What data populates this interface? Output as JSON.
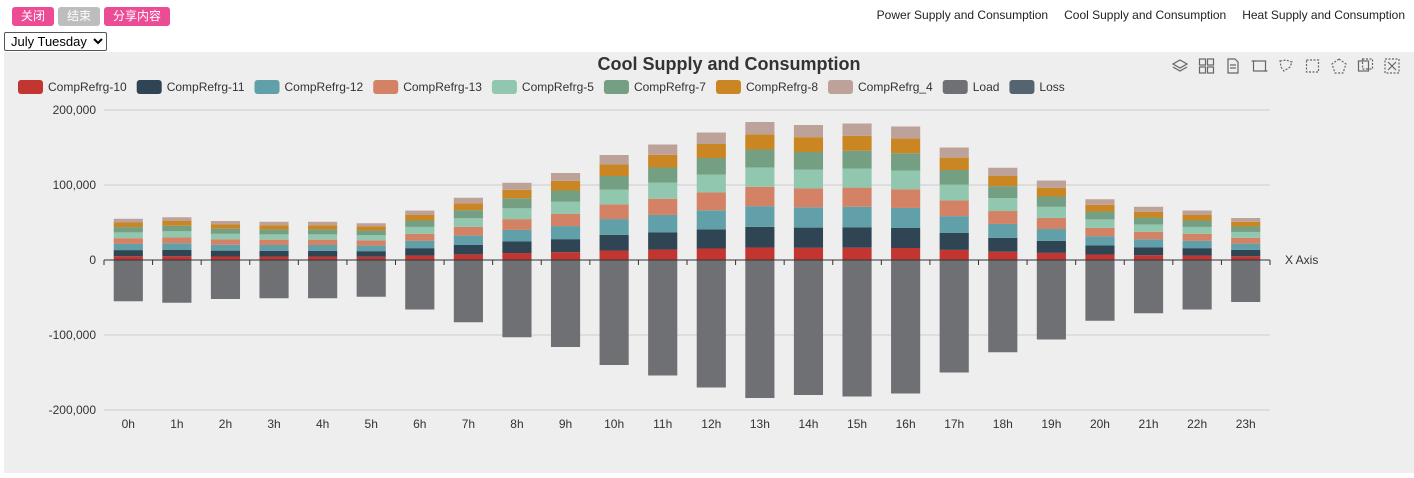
{
  "buttons": {
    "close": "关闭",
    "end": "结束",
    "share": "分享内容"
  },
  "nav": {
    "power": "Power Supply and Consumption",
    "cool": "Cool Supply and Consumption",
    "heat": "Heat Supply and Consumption"
  },
  "day_select": {
    "value": "July Tuesday"
  },
  "toolbox_icons": [
    "stack-icon",
    "tiled-icon",
    "data-view-icon",
    "zoom-icon",
    "lasso-icon",
    "rect-select-icon",
    "polygon-select-icon",
    "keep-select-icon",
    "clear-select-icon"
  ],
  "chart_data": {
    "type": "bar",
    "title": "Cool Supply and Consumption",
    "xlabel": "X Axis",
    "ylabel": "",
    "ylim": [
      -200000,
      200000
    ],
    "yticks": [
      "200,000",
      "100,000",
      "0",
      "-100,000",
      "-200,000"
    ],
    "categories": [
      "0h",
      "1h",
      "2h",
      "3h",
      "4h",
      "5h",
      "6h",
      "7h",
      "8h",
      "9h",
      "10h",
      "11h",
      "12h",
      "13h",
      "14h",
      "15h",
      "16h",
      "17h",
      "18h",
      "19h",
      "20h",
      "21h",
      "22h",
      "23h"
    ],
    "totals": [
      55000,
      57000,
      52000,
      51000,
      51000,
      49000,
      66000,
      83000,
      103000,
      116000,
      140000,
      154000,
      170000,
      184000,
      180000,
      182000,
      178000,
      150000,
      123000,
      106000,
      81000,
      71000,
      66000,
      56000
    ],
    "legend_position": "top-left",
    "grid": true,
    "series": [
      {
        "name": "CompRefrg-10",
        "color": "#c23531",
        "values": [
          5000,
          5100,
          4700,
          4600,
          4600,
          4400,
          5900,
          7500,
          9300,
          10400,
          12600,
          13900,
          15300,
          16600,
          16200,
          16400,
          16000,
          13500,
          11100,
          9500,
          7300,
          6400,
          5900,
          5000
        ]
      },
      {
        "name": "CompRefrg-11",
        "color": "#2f4554",
        "values": [
          8200,
          8600,
          7800,
          7700,
          7700,
          7400,
          9900,
          12500,
          15400,
          17400,
          21000,
          23100,
          25500,
          27600,
          27000,
          27300,
          26700,
          22500,
          18500,
          15900,
          12100,
          10600,
          9900,
          8400
        ]
      },
      {
        "name": "CompRefrg-12",
        "color": "#61a0a8",
        "values": [
          8200,
          8600,
          7800,
          7700,
          7700,
          7400,
          9900,
          12500,
          15400,
          17400,
          21000,
          23100,
          25500,
          27600,
          27000,
          27300,
          26700,
          22500,
          18500,
          15900,
          12100,
          10600,
          9900,
          8400
        ]
      },
      {
        "name": "CompRefrg-13",
        "color": "#d48265",
        "values": [
          7700,
          8000,
          7300,
          7100,
          7100,
          6900,
          9200,
          11600,
          14400,
          16200,
          19600,
          21600,
          23800,
          25800,
          25200,
          25500,
          24900,
          21000,
          17200,
          14800,
          11300,
          9900,
          9200,
          7800
        ]
      },
      {
        "name": "CompRefrg-5",
        "color": "#91c7ae",
        "values": [
          7700,
          8000,
          7300,
          7100,
          7100,
          6900,
          9200,
          11600,
          14400,
          16200,
          19600,
          21600,
          23800,
          25800,
          25200,
          25500,
          24900,
          21000,
          17200,
          14800,
          11300,
          9900,
          9200,
          7800
        ]
      },
      {
        "name": "CompRefrg-7",
        "color": "#749f83",
        "values": [
          7100,
          7400,
          6800,
          6600,
          6600,
          6400,
          8600,
          10800,
          13400,
          15100,
          18200,
          20000,
          22100,
          23900,
          23400,
          23700,
          23100,
          19500,
          16000,
          13800,
          10500,
          9200,
          8600,
          7300
        ]
      },
      {
        "name": "CompRefrg-8",
        "color": "#ca8622",
        "values": [
          6100,
          6300,
          5700,
          5600,
          5600,
          5400,
          7300,
          9100,
          11300,
          12800,
          15400,
          16900,
          18700,
          20200,
          19800,
          20000,
          19600,
          16500,
          13500,
          11700,
          8900,
          7800,
          7300,
          6200
        ]
      },
      {
        "name": "CompRefrg_4",
        "color": "#bda29a",
        "values": [
          5000,
          5000,
          4600,
          4600,
          4600,
          4200,
          5900,
          7400,
          9400,
          10500,
          12600,
          13800,
          15300,
          16500,
          16200,
          16300,
          16100,
          13500,
          11000,
          9600,
          7500,
          6600,
          6000,
          5100
        ]
      },
      {
        "name": "Load",
        "color": "#6e7074",
        "values": [
          -55000,
          -57000,
          -52000,
          -51000,
          -51000,
          -49000,
          -66000,
          -83000,
          -103000,
          -116000,
          -140000,
          -154000,
          -170000,
          -184000,
          -180000,
          -182000,
          -178000,
          -150000,
          -123000,
          -106000,
          -81000,
          -71000,
          -66000,
          -56000
        ]
      },
      {
        "name": "Loss",
        "color": "#546570",
        "values": [
          0,
          0,
          0,
          0,
          0,
          0,
          0,
          0,
          0,
          0,
          0,
          0,
          0,
          0,
          0,
          0,
          0,
          0,
          0,
          0,
          0,
          0,
          0,
          0
        ]
      }
    ]
  }
}
